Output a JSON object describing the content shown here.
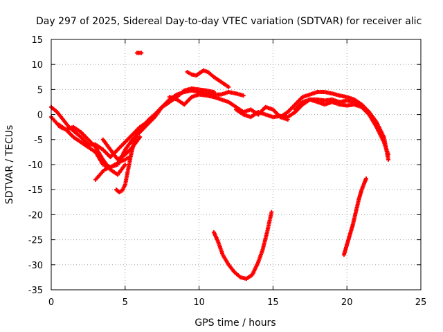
{
  "chart_data": {
    "type": "scatter",
    "title": "Day 297 of 2025, Sidereal Day-to-day VTEC variation (SDTVAR) for receiver alic",
    "xlabel": "GPS time / hours",
    "ylabel": "SDTVAR / TECUs",
    "xlim": [
      0,
      25
    ],
    "ylim": [
      -35,
      15
    ],
    "xticks": [
      0,
      5,
      10,
      15,
      20,
      25
    ],
    "yticks": [
      15,
      10,
      5,
      0,
      -5,
      -10,
      -15,
      -20,
      -25,
      -30,
      -35
    ],
    "grid": true,
    "legend": "none",
    "series_color": "#ff0000",
    "series": [
      {
        "name": "track-a",
        "x": [
          0.0,
          0.3,
          0.6,
          1.0,
          1.5,
          2.0,
          2.5,
          3.0,
          3.5,
          4.0,
          4.5,
          5.0,
          5.5,
          6.0,
          6.5,
          7.0,
          7.5,
          8.0,
          8.5,
          9.0,
          9.5,
          10.0,
          10.5,
          11.0,
          11.5,
          12.0,
          12.5,
          13.0
        ],
        "y": [
          -0.5,
          -1.5,
          -2.5,
          -3.0,
          -4.5,
          -5.5,
          -6.5,
          -7.5,
          -10.0,
          -10.5,
          -10.0,
          -7.0,
          -5.0,
          -3.5,
          -2.0,
          -0.5,
          1.5,
          3.0,
          4.0,
          4.5,
          4.8,
          4.5,
          4.2,
          4.0,
          4.0,
          4.5,
          4.2,
          3.8
        ]
      },
      {
        "name": "track-b",
        "x": [
          0.0,
          0.4,
          0.8,
          1.2,
          1.6,
          2.0,
          2.5,
          3.0,
          3.5,
          4.0,
          4.5,
          5.0,
          5.5,
          6.0,
          6.5,
          7.0,
          7.5,
          8.0,
          8.5,
          9.0,
          9.5,
          10.0,
          10.5,
          11.0
        ],
        "y": [
          1.5,
          0.5,
          -1.0,
          -2.5,
          -3.5,
          -4.5,
          -6.0,
          -6.0,
          -7.0,
          -8.5,
          -7.0,
          -5.5,
          -4.0,
          -2.5,
          -1.5,
          0.0,
          1.5,
          2.5,
          3.5,
          4.8,
          5.2,
          5.0,
          4.8,
          4.5
        ]
      },
      {
        "name": "track-c",
        "x": [
          0.5,
          1.0,
          1.5,
          2.0,
          2.5,
          3.0,
          3.5,
          4.0,
          4.5,
          5.0
        ],
        "y": [
          -2.0,
          -3.0,
          -2.5,
          -3.5,
          -5.0,
          -6.5,
          -9.0,
          -11.0,
          -12.0,
          -10.0
        ]
      },
      {
        "name": "track-d",
        "x": [
          3.0,
          3.3,
          3.6,
          4.0,
          4.3,
          4.6,
          5.0,
          5.3
        ],
        "y": [
          -13.0,
          -12.0,
          -11.0,
          -10.5,
          -10.0,
          -9.5,
          -9.0,
          -8.5
        ]
      },
      {
        "name": "track-e",
        "x": [
          3.5,
          4.0,
          4.5,
          5.0,
          5.5,
          6.0
        ],
        "y": [
          -5.0,
          -7.0,
          -9.0,
          -8.0,
          -6.5,
          -4.5
        ]
      },
      {
        "name": "track-f",
        "x": [
          4.4,
          4.6,
          4.8,
          5.0,
          5.2,
          5.4,
          5.6,
          5.8,
          6.0,
          6.3,
          6.6,
          7.0,
          7.5,
          8.0
        ],
        "y": [
          -15.0,
          -15.5,
          -15.2,
          -14.0,
          -11.0,
          -8.0,
          -5.5,
          -4.0,
          -3.0,
          -2.0,
          -1.0,
          0.0,
          1.5,
          2.5
        ]
      },
      {
        "name": "track-g",
        "x": [
          5.8,
          6.1
        ],
        "y": [
          12.3,
          12.3
        ]
      },
      {
        "name": "track-h",
        "x": [
          9.2,
          9.5,
          9.8,
          10.0,
          10.3,
          10.6,
          11.0,
          11.5,
          12.0
        ],
        "y": [
          8.5,
          8.0,
          7.8,
          8.2,
          8.8,
          8.5,
          7.5,
          6.5,
          5.5
        ]
      },
      {
        "name": "track-i",
        "x": [
          8.0,
          8.5,
          9.0,
          9.5,
          10.0,
          10.5,
          11.0,
          11.5,
          12.0,
          12.5,
          13.0,
          13.5,
          14.0,
          14.5,
          15.0,
          15.5,
          16.0
        ],
        "y": [
          3.5,
          3.0,
          2.0,
          3.5,
          4.0,
          3.8,
          3.5,
          3.0,
          2.5,
          1.5,
          0.5,
          1.0,
          0.0,
          1.5,
          1.0,
          -0.5,
          -1.0
        ]
      },
      {
        "name": "track-j",
        "x": [
          12.5,
          13.0,
          13.5,
          14.0,
          14.5,
          15.0,
          15.5,
          16.0,
          16.5,
          17.0,
          17.5,
          18.0,
          18.5,
          19.0,
          19.5,
          20.0,
          20.5,
          21.0
        ],
        "y": [
          1.0,
          0.0,
          -0.5,
          0.5,
          0.0,
          -0.5,
          -0.3,
          -0.5,
          0.5,
          2.0,
          3.0,
          2.5,
          2.0,
          2.5,
          2.0,
          1.8,
          2.0,
          1.5
        ]
      },
      {
        "name": "track-k",
        "x": [
          15.5,
          16.0,
          16.5,
          17.0,
          17.5,
          18.0,
          18.5,
          19.0,
          19.5,
          20.0,
          20.5,
          21.0,
          21.5,
          22.0,
          22.5,
          22.8
        ],
        "y": [
          -0.5,
          0.5,
          2.0,
          3.5,
          4.0,
          4.5,
          4.5,
          4.2,
          3.8,
          3.5,
          3.0,
          2.0,
          0.5,
          -1.5,
          -4.5,
          -9.0
        ]
      },
      {
        "name": "track-l",
        "x": [
          16.5,
          17.0,
          17.5,
          18.0,
          18.5,
          19.0,
          19.5,
          20.0,
          20.5,
          21.0,
          21.5,
          22.0,
          22.5,
          22.8
        ],
        "y": [
          1.0,
          2.5,
          3.0,
          3.0,
          2.8,
          3.0,
          2.5,
          2.8,
          2.5,
          1.5,
          0.0,
          -2.5,
          -5.5,
          -8.0
        ]
      },
      {
        "name": "track-m",
        "x": [
          11.0,
          11.3,
          11.6,
          12.0,
          12.4,
          12.8,
          13.2,
          13.6,
          14.0,
          14.3,
          14.6,
          14.9
        ],
        "y": [
          -23.5,
          -25.5,
          -28.0,
          -30.0,
          -31.5,
          -32.5,
          -32.8,
          -32.0,
          -29.5,
          -27.0,
          -23.5,
          -19.5
        ]
      },
      {
        "name": "track-n",
        "x": [
          19.8,
          20.0,
          20.2,
          20.4,
          20.6,
          20.8,
          21.0,
          21.2,
          21.3
        ],
        "y": [
          -28.0,
          -26.0,
          -24.0,
          -22.0,
          -19.5,
          -17.0,
          -15.0,
          -13.5,
          -12.8
        ]
      }
    ]
  }
}
